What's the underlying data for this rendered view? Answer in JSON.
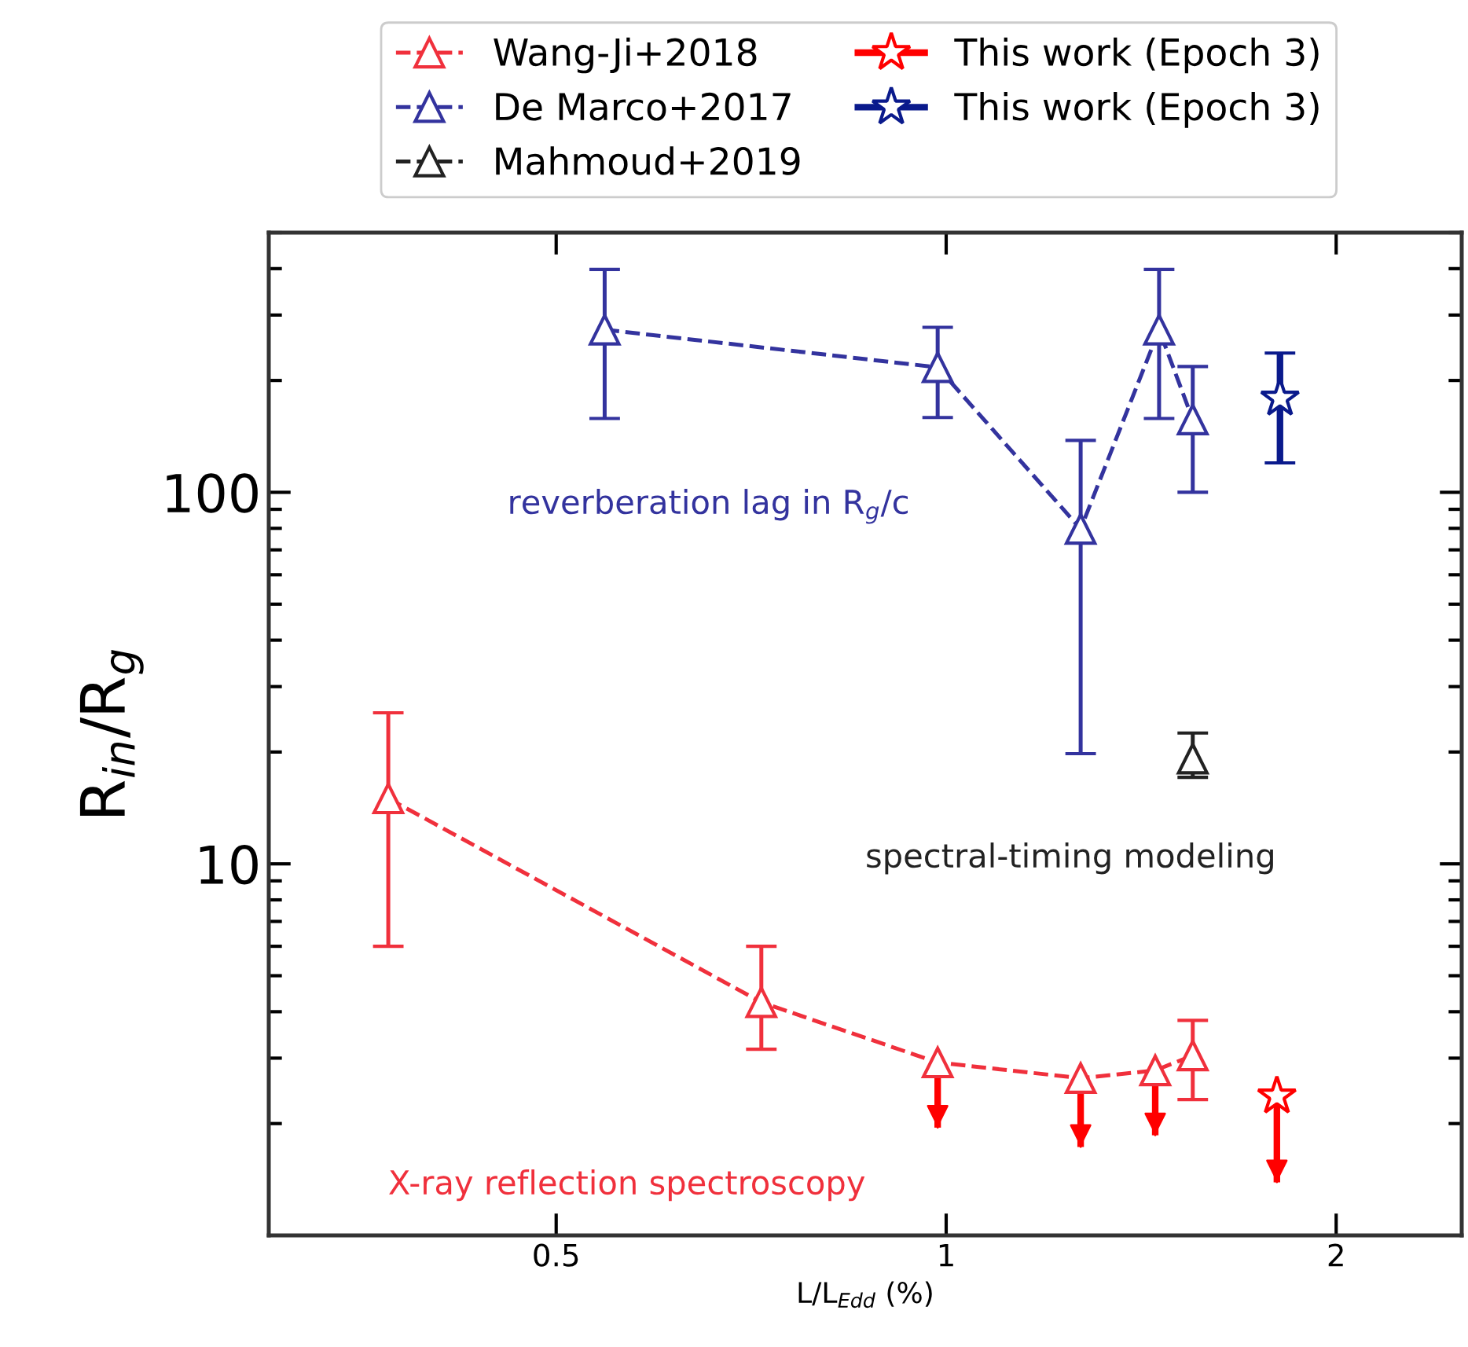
{
  "chart_data": {
    "type": "line",
    "xlabel": "L/L$_{Edd}$ (%)",
    "ylabel": "R$_{in}$/R$_{g}$",
    "log": "xy",
    "xlim": [
      0.3,
      2.5
    ],
    "ylim": [
      1,
      500
    ],
    "xticks": [
      0.5,
      1,
      2
    ],
    "yticks": [
      10,
      100
    ],
    "legend": "top",
    "grid": false,
    "annotations": [
      "reverberation lag in R$_{g}$/c",
      "spectral-timing modeling",
      "X-ray reflection spectroscopy"
    ],
    "series": [
      {
        "name": "Wang-Ji+2018",
        "color": "#f0303c",
        "marker": "triangle",
        "line_style": "dashed",
        "x": [
          0.371,
          0.72,
          0.985,
          1.27,
          1.45,
          1.55
        ],
        "values": [
          15,
          4.24,
          2.92,
          2.65,
          2.78,
          3.05
        ],
        "errors": [
          [
            6.0,
            25.5
          ],
          [
            3.17,
            6.0
          ],
          [
            1.95,
            2.92
          ],
          [
            1.73,
            2.65
          ],
          [
            1.86,
            2.78
          ],
          [
            2.32,
            3.79
          ]
        ]
      },
      {
        "name": "De Marco+2017",
        "color": "#33339e",
        "marker": "triangle",
        "line_style": "dashed",
        "x": [
          0.545,
          0.985,
          1.27,
          1.46,
          1.55
        ],
        "values": [
          274,
          217,
          79.7,
          274,
          157
        ],
        "errors": [
          [
            158,
            398
          ],
          [
            159,
            278
          ],
          [
            19.8,
            138
          ],
          [
            158,
            398
          ],
          [
            100,
            218
          ]
        ]
      },
      {
        "name": "Mahmoud+2019",
        "color": "#222222",
        "marker": "triangle",
        "line_style": "dashed",
        "x": [
          1.55
        ],
        "values": [
          19.2
        ],
        "errors": [
          [
            17.1,
            22.5
          ]
        ]
      },
      {
        "name": "This work (Epoch 3)",
        "color": "#ff0000",
        "marker": "star",
        "line_style": "solid",
        "x": [
          1.8
        ],
        "values": [
          2.37
        ],
        "errors": [
          [
            1.39,
            2.37
          ]
        ]
      },
      {
        "name": "This work (Epoch 3)",
        "color": "#0a1a8c",
        "marker": "star",
        "line_style": "solid",
        "x": [
          1.81
        ],
        "values": [
          179
        ],
        "errors": [
          [
            120,
            237
          ]
        ]
      }
    ]
  }
}
